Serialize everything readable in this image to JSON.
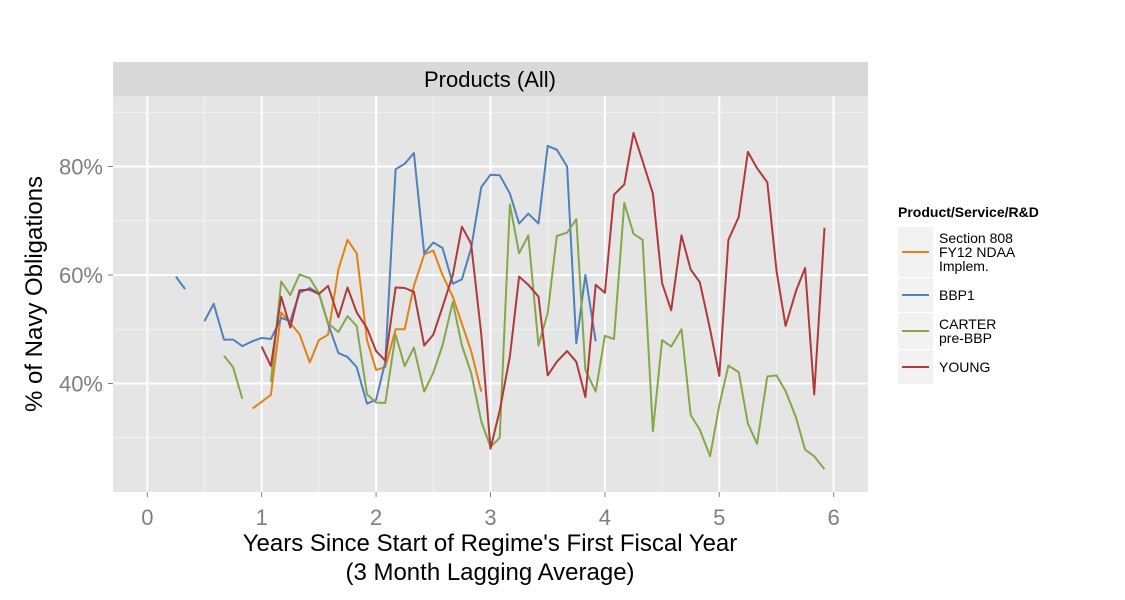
{
  "chart_data": {
    "type": "line",
    "facet_title": "Products (All)",
    "xlabel_lines": [
      "Years Since Start of Regime's First Fiscal Year",
      "(3 Month Lagging Average)"
    ],
    "ylabel": "% of Navy Obligations",
    "xlim": [
      -0.3,
      6.3
    ],
    "ylim": [
      0.2,
      0.93
    ],
    "x_ticks": [
      0,
      1,
      2,
      3,
      4,
      5,
      6
    ],
    "x_tick_labels": [
      "0",
      "1",
      "2",
      "3",
      "4",
      "5",
      "6"
    ],
    "y_ticks": [
      0.4,
      0.6,
      0.8
    ],
    "y_tick_labels": [
      "40%",
      "60%",
      "80%"
    ],
    "grid": true,
    "legend": {
      "title": "Product/Service/R&D",
      "placement": "right",
      "entries": [
        {
          "lines": [
            "Section 808",
            "FY12 NDAA",
            "Implem."
          ],
          "color": "#e08214"
        },
        {
          "lines": [
            "BBP1"
          ],
          "color": "#4f81bd"
        },
        {
          "lines": [
            "CARTER",
            "pre-BBP"
          ],
          "color": "#84a849"
        },
        {
          "lines": [
            "YOUNG"
          ],
          "color": "#b03a3a"
        }
      ]
    },
    "series": [
      {
        "name": "Section 808 FY12 NDAA Implem.",
        "color": "#e08214",
        "x": [
          0.92,
          1.08,
          1.17,
          1.33,
          1.42,
          1.5,
          1.58,
          1.67,
          1.75,
          1.83,
          1.92,
          2.0,
          2.08,
          2.17,
          2.25,
          2.33,
          2.42,
          2.5,
          2.58,
          2.67,
          2.75,
          2.83,
          2.92
        ],
        "y": [
          0.354,
          0.379,
          0.531,
          0.491,
          0.439,
          0.48,
          0.49,
          0.61,
          0.665,
          0.64,
          0.48,
          0.425,
          0.43,
          0.5,
          0.5,
          0.58,
          0.638,
          0.645,
          0.6,
          0.56,
          0.51,
          0.46,
          0.385
        ]
      },
      {
        "name": "BBP1",
        "color": "#4f81bd",
        "segments": [
          {
            "x": [
              0.25,
              0.33
            ],
            "y": [
              0.597,
              0.574
            ]
          },
          {
            "x": [
              0.5,
              0.58,
              0.67,
              0.75,
              0.83,
              0.92,
              1.0,
              1.08,
              1.17,
              1.25,
              1.33,
              1.42,
              1.5,
              1.58,
              1.67,
              1.75,
              1.83,
              1.92,
              2.0,
              2.08,
              2.17,
              2.25,
              2.33,
              2.42,
              2.5,
              2.58,
              2.67,
              2.75,
              2.83,
              2.92,
              3.0,
              3.08,
              3.17,
              3.25,
              3.33,
              3.42,
              3.5,
              3.58,
              3.67,
              3.75,
              3.83,
              3.92
            ],
            "y": [
              0.515,
              0.547,
              0.481,
              0.481,
              0.469,
              0.478,
              0.484,
              0.482,
              0.521,
              0.515,
              0.567,
              0.576,
              0.566,
              0.51,
              0.456,
              0.449,
              0.43,
              0.363,
              0.37,
              0.44,
              0.795,
              0.805,
              0.825,
              0.64,
              0.66,
              0.65,
              0.584,
              0.592,
              0.649,
              0.762,
              0.785,
              0.784,
              0.75,
              0.695,
              0.713,
              0.695,
              0.838,
              0.831,
              0.8,
              0.474,
              0.6,
              0.478
            ]
          }
        ]
      },
      {
        "name": "CARTER pre-BBP",
        "color": "#84a849",
        "segments": [
          {
            "x": [
              0.67,
              0.75,
              0.83
            ],
            "y": [
              0.451,
              0.43,
              0.372
            ]
          },
          {
            "x": [
              1.08,
              1.17,
              1.25,
              1.33,
              1.42,
              1.5,
              1.58,
              1.67,
              1.75,
              1.83,
              1.92,
              2.0,
              2.08,
              2.17,
              2.25,
              2.33,
              2.42,
              2.5,
              2.58,
              2.67,
              2.75,
              2.83,
              2.92,
              3.0,
              3.08,
              3.17,
              3.25,
              3.33,
              3.42,
              3.5,
              3.58,
              3.67,
              3.75,
              3.83,
              3.92,
              4.0,
              4.08,
              4.17,
              4.25,
              4.33,
              4.42,
              4.5,
              4.58,
              4.67,
              4.75,
              4.83,
              4.92,
              5.0,
              5.08,
              5.17,
              5.25,
              5.33,
              5.42,
              5.5,
              5.58,
              5.67,
              5.75,
              5.83,
              5.92
            ],
            "y": [
              0.403,
              0.588,
              0.563,
              0.601,
              0.594,
              0.567,
              0.511,
              0.495,
              0.524,
              0.506,
              0.38,
              0.365,
              0.364,
              0.49,
              0.432,
              0.466,
              0.385,
              0.42,
              0.47,
              0.55,
              0.47,
              0.42,
              0.33,
              0.283,
              0.3,
              0.73,
              0.64,
              0.673,
              0.47,
              0.53,
              0.672,
              0.678,
              0.703,
              0.425,
              0.385,
              0.488,
              0.482,
              0.733,
              0.676,
              0.665,
              0.312,
              0.48,
              0.468,
              0.5,
              0.342,
              0.315,
              0.266,
              0.36,
              0.433,
              0.421,
              0.326,
              0.289,
              0.413,
              0.415,
              0.386,
              0.338,
              0.278,
              0.266,
              0.242
            ]
          }
        ]
      },
      {
        "name": "YOUNG",
        "color": "#b03a3a",
        "x": [
          1.0,
          1.08,
          1.17,
          1.25,
          1.33,
          1.42,
          1.5,
          1.58,
          1.67,
          1.75,
          1.83,
          1.92,
          2.0,
          2.08,
          2.17,
          2.25,
          2.33,
          2.42,
          2.5,
          2.58,
          2.67,
          2.75,
          2.83,
          2.92,
          3.0,
          3.08,
          3.17,
          3.25,
          3.33,
          3.42,
          3.5,
          3.58,
          3.67,
          3.75,
          3.83,
          3.92,
          4.0,
          4.08,
          4.17,
          4.25,
          4.33,
          4.42,
          4.5,
          4.58,
          4.67,
          4.75,
          4.83,
          4.92,
          5.0,
          5.08,
          5.17,
          5.25,
          5.33,
          5.42,
          5.5,
          5.58,
          5.67,
          5.75,
          5.83,
          5.92
        ],
        "y": [
          0.468,
          0.432,
          0.56,
          0.503,
          0.572,
          0.573,
          0.565,
          0.58,
          0.522,
          0.577,
          0.531,
          0.502,
          0.46,
          0.442,
          0.577,
          0.576,
          0.569,
          0.47,
          0.49,
          0.541,
          0.6,
          0.689,
          0.658,
          0.49,
          0.28,
          0.35,
          0.45,
          0.597,
          0.582,
          0.56,
          0.415,
          0.44,
          0.46,
          0.44,
          0.375,
          0.582,
          0.567,
          0.748,
          0.767,
          0.862,
          0.81,
          0.75,
          0.585,
          0.535,
          0.673,
          0.61,
          0.587,
          0.5,
          0.414,
          0.665,
          0.707,
          0.827,
          0.797,
          0.771,
          0.608,
          0.506,
          0.57,
          0.613,
          0.38,
          0.687
        ]
      }
    ]
  }
}
